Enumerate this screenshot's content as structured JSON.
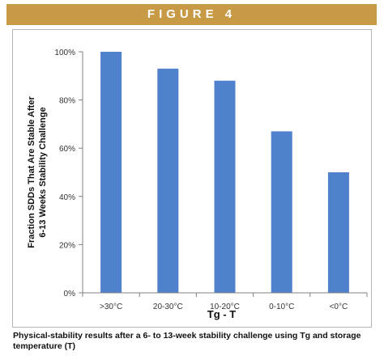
{
  "figure_label": "FIGURE 4",
  "caption": "Physical-stability results after a 6- to 13-week stability challenge using Tg and storage temperature (T)",
  "colors": {
    "banner": "#c99a45",
    "bar": "#4f81cd",
    "axis": "#808080"
  },
  "chart_data": {
    "type": "bar",
    "title": "",
    "xlabel": "Tg - T",
    "ylabel_lines": [
      "Fraction SDDs That Are Stable After",
      "6-13 Weeks Stability Challenge"
    ],
    "categories": [
      ">30°C",
      "20-30°C",
      "10-20°C",
      "0-10°C",
      "<0°C"
    ],
    "values": [
      100,
      93,
      88,
      67,
      50
    ],
    "ylim": [
      0,
      100
    ],
    "yticks": [
      0,
      20,
      40,
      60,
      80,
      100
    ],
    "ytick_labels": [
      "0%",
      "20%",
      "40%",
      "60%",
      "80%",
      "100%"
    ],
    "grid": false,
    "legend": "none"
  }
}
